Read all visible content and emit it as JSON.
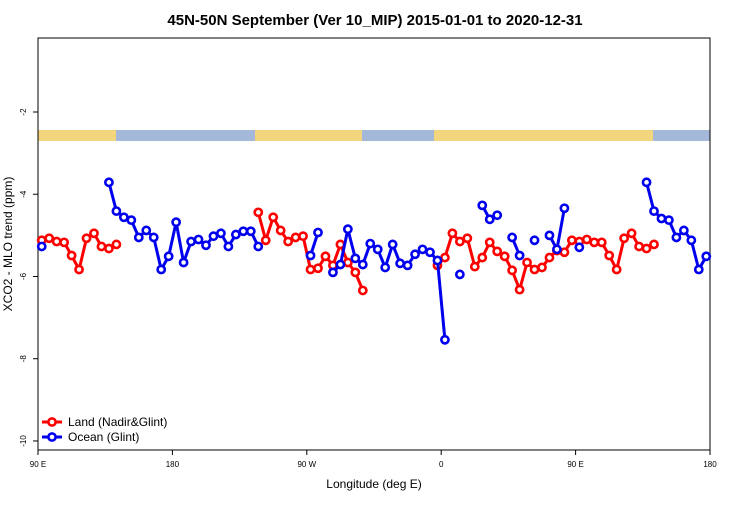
{
  "chart_data": {
    "type": "line",
    "title": "45N-50N September (Ver 10_MIP)   2015-01-01 to 2020-12-31",
    "x_label": "Longitude (deg E)",
    "y_label": "XCO2 - MLO trend (ppm)",
    "x": [
      92.5,
      97.5,
      102.5,
      107.5,
      112.5,
      117.5,
      122.5,
      127.5,
      132.5,
      137.5,
      142.5,
      147.5,
      152.5,
      157.5,
      162.5,
      167.5,
      172.5,
      177.5,
      182.5,
      187.5,
      192.5,
      197.5,
      202.5,
      207.5,
      212.5,
      217.5,
      222.5,
      227.5,
      232.5,
      237.5,
      242.5,
      247.5,
      252.5,
      257.5,
      262.5,
      267.5,
      272.5,
      277.5,
      282.5,
      287.5,
      292.5,
      297.5,
      302.5,
      307.5,
      312.5,
      317.5,
      322.5,
      327.5,
      332.5,
      337.5,
      342.5,
      347.5,
      352.5,
      357.5,
      362.5,
      367.5,
      372.5,
      377.5,
      382.5,
      387.5,
      392.5,
      397.5,
      402.5,
      407.5,
      412.5,
      417.5,
      422.5,
      427.5,
      432.5,
      437.5,
      442.5,
      447.5,
      452.5,
      457.5,
      462.5,
      467.5,
      472.5,
      477.5,
      482.5,
      487.5,
      492.5,
      497.5,
      502.5,
      507.5,
      512.5,
      517.5,
      522.5,
      527.5,
      532.5,
      537.5
    ],
    "series": [
      {
        "name": "Land (Nadir&Glint)",
        "color": "#ff0000",
        "values": [
          -5.12,
          -5.07,
          -5.15,
          -5.17,
          -5.49,
          -5.83,
          -5.07,
          -4.95,
          -5.27,
          -5.32,
          -5.22,
          null,
          null,
          null,
          null,
          null,
          null,
          null,
          null,
          null,
          null,
          null,
          null,
          null,
          null,
          null,
          null,
          null,
          null,
          -4.44,
          -5.12,
          -4.56,
          -4.88,
          -5.15,
          -5.05,
          -5.02,
          -5.83,
          -5.8,
          -5.51,
          -5.73,
          -5.22,
          -5.66,
          -5.9,
          -6.34,
          null,
          null,
          null,
          null,
          null,
          null,
          null,
          null,
          null,
          -5.73,
          -5.54,
          -4.95,
          -5.15,
          -5.07,
          -5.76,
          -5.54,
          -5.17,
          -5.39,
          -5.51,
          -5.85,
          -6.32,
          -5.66,
          -5.83,
          -5.78,
          -5.54,
          -5.37,
          -5.41,
          -5.12,
          -5.15,
          -5.1,
          -5.17,
          -5.17,
          -5.49,
          -5.83,
          -5.07,
          -4.95,
          -5.27,
          -5.32,
          -5.22,
          null,
          null,
          null,
          null,
          null,
          null,
          null
        ]
      },
      {
        "name": "Ocean (Glint)",
        "color": "#0000ee",
        "values": [
          -5.27,
          null,
          null,
          null,
          null,
          null,
          null,
          null,
          null,
          -3.71,
          -4.41,
          -4.56,
          -4.63,
          -5.05,
          -4.88,
          -5.05,
          -5.83,
          -5.51,
          -4.68,
          -5.66,
          -5.15,
          -5.1,
          -5.24,
          -5.02,
          -4.95,
          -5.27,
          -4.98,
          -4.9,
          -4.9,
          -5.27,
          null,
          null,
          null,
          null,
          null,
          null,
          -5.49,
          -4.93,
          null,
          -5.9,
          -5.71,
          -4.85,
          -5.56,
          -5.71,
          -5.2,
          -5.34,
          -5.78,
          -5.22,
          -5.68,
          -5.73,
          -5.46,
          -5.34,
          -5.41,
          -5.61,
          -7.54,
          null,
          -5.95,
          null,
          null,
          -4.27,
          -4.61,
          -4.51,
          null,
          -5.05,
          -5.49,
          null,
          -5.12,
          null,
          -5,
          -5.34,
          -4.34,
          null,
          -5.29,
          null,
          null,
          null,
          null,
          null,
          null,
          null,
          null,
          -3.71,
          -4.41,
          -4.59,
          -4.63,
          -5.05,
          -4.88,
          -5.12,
          -5.83,
          -5.51
        ]
      }
    ],
    "xlim": [
      90,
      540
    ],
    "xticks": [
      {
        "value": 90,
        "label": "90 E"
      },
      180,
      {
        "value": 270,
        "label": "90 W"
      },
      {
        "value": 360,
        "label": "0"
      },
      {
        "value": 450,
        "label": "90 E"
      },
      {
        "value": 540,
        "label": "180"
      }
    ],
    "ylim": [
      -10.22,
      -0.2
    ],
    "yticks": [
      -10,
      -8,
      -6,
      -4,
      -2
    ],
    "legend": "lower left"
  }
}
